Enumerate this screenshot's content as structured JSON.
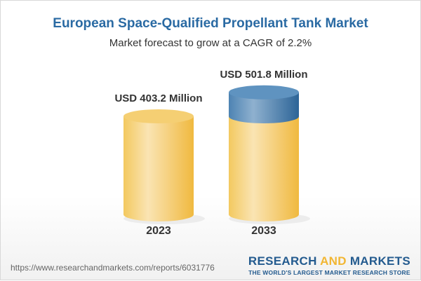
{
  "title": "European Space-Qualified Propellant Tank Market",
  "subtitle": "Market forecast to grow at a CAGR of 2.2%",
  "chart_data": {
    "type": "bar",
    "categories": [
      "2023",
      "2033"
    ],
    "values": [
      403.2,
      501.8
    ],
    "data_labels": [
      "USD 403.2 Million",
      "USD 501.8 Million"
    ],
    "unit": "USD Million",
    "colors": {
      "base": "#f2c65a",
      "growth": "#4f86b5"
    }
  },
  "footer": {
    "url": "https://www.researchandmarkets.com/reports/6031776",
    "logo_part1": "RESEARCH ",
    "logo_part2": "AND",
    "logo_part3": " MARKETS",
    "tagline": "THE WORLD'S LARGEST MARKET RESEARCH STORE"
  }
}
